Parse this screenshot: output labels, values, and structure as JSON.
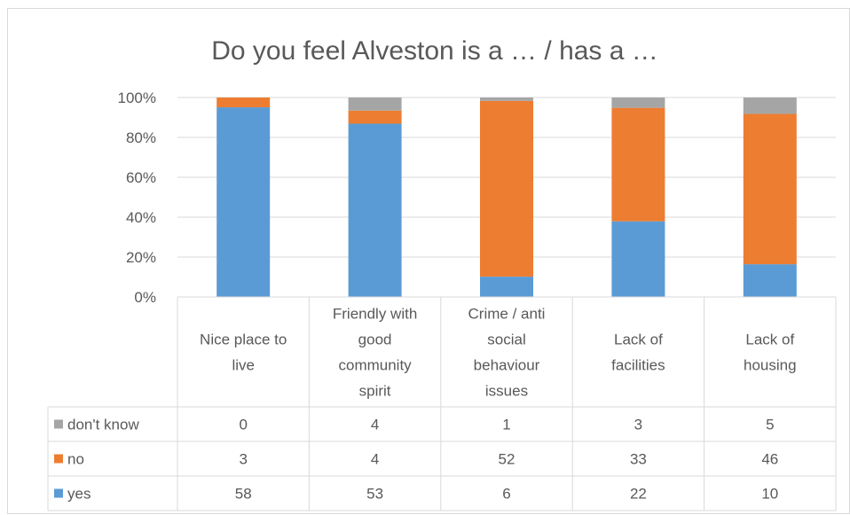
{
  "chart_data": {
    "type": "bar",
    "stacked": "percent",
    "title": "Do you feel Alveston is a … / has a …",
    "categories": [
      [
        "Nice place to",
        "live"
      ],
      [
        "Friendly with",
        "good",
        "community",
        "spirit"
      ],
      [
        "Crime / anti",
        "social",
        "behaviour",
        "issues"
      ],
      [
        "Lack of",
        "facilities"
      ],
      [
        "Lack of",
        "housing"
      ]
    ],
    "yticks": [
      "0%",
      "20%",
      "40%",
      "60%",
      "80%",
      "100%"
    ],
    "ylim": [
      0,
      100
    ],
    "grid": true,
    "series": [
      {
        "name": "yes",
        "color": "#5b9bd5",
        "values": [
          58,
          53,
          6,
          22,
          10
        ]
      },
      {
        "name": "no",
        "color": "#ed7d31",
        "values": [
          3,
          4,
          52,
          33,
          46
        ]
      },
      {
        "name": "don't know",
        "color": "#a5a5a5",
        "values": [
          0,
          4,
          1,
          3,
          5
        ]
      }
    ],
    "table_row_order": [
      "don't know",
      "no",
      "yes"
    ]
  }
}
